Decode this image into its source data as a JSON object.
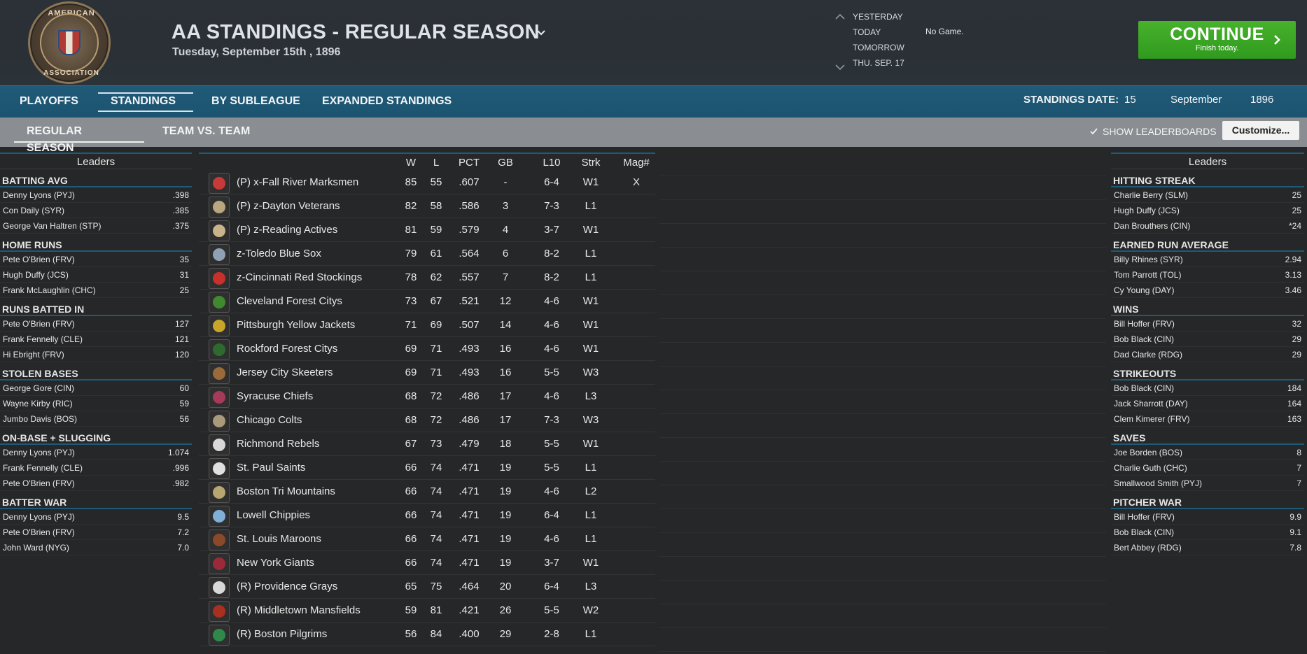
{
  "header": {
    "title": "AA STANDINGS - REGULAR SEASON",
    "date": "Tuesday, September 15th , 1896",
    "logo_text_top": "AMERICAN",
    "logo_text_bottom": "ASSOCIATION",
    "days": [
      "YESTERDAY",
      "TODAY",
      "TOMORROW",
      "THU. SEP. 17"
    ],
    "today_status": "No Game.",
    "continue_label": "CONTINUE",
    "continue_sub": "Finish today."
  },
  "tabs_primary": [
    "PLAYOFFS",
    "STANDINGS",
    "BY SUBLEAGUE",
    "EXPANDED STANDINGS"
  ],
  "standings_date": {
    "label": "STANDINGS DATE:",
    "day": "15",
    "month": "September",
    "year": "1896"
  },
  "tabs_secondary": [
    "REGULAR SEASON",
    "TEAM VS. TEAM"
  ],
  "show_leaderboards": "SHOW LEADERBOARDS",
  "customize": "Customize...",
  "colors": {
    "accent": "#1f5a78",
    "continue": "#3fa827"
  },
  "left_leaders": {
    "title": "Leaders",
    "categories": [
      {
        "name": "BATTING AVG",
        "rows": [
          [
            "Denny Lyons (PYJ)",
            ".398"
          ],
          [
            "Con Daily (SYR)",
            ".385"
          ],
          [
            "George Van Haltren (STP)",
            ".375"
          ]
        ]
      },
      {
        "name": "HOME RUNS",
        "rows": [
          [
            "Pete O'Brien (FRV)",
            "35"
          ],
          [
            "Hugh Duffy (JCS)",
            "31"
          ],
          [
            "Frank McLaughlin (CHC)",
            "25"
          ]
        ]
      },
      {
        "name": "RUNS BATTED IN",
        "rows": [
          [
            "Pete O'Brien (FRV)",
            "127"
          ],
          [
            "Frank Fennelly (CLE)",
            "121"
          ],
          [
            "Hi Ebright (FRV)",
            "120"
          ]
        ]
      },
      {
        "name": "STOLEN BASES",
        "rows": [
          [
            "George Gore (CIN)",
            "60"
          ],
          [
            "Wayne Kirby (RIC)",
            "59"
          ],
          [
            "Jumbo Davis (BOS)",
            "56"
          ]
        ]
      },
      {
        "name": "ON-BASE + SLUGGING",
        "rows": [
          [
            "Denny Lyons (PYJ)",
            "1.074"
          ],
          [
            "Frank Fennelly (CLE)",
            ".996"
          ],
          [
            "Pete O'Brien (FRV)",
            ".982"
          ]
        ]
      },
      {
        "name": "BATTER WAR",
        "rows": [
          [
            "Denny Lyons (PYJ)",
            "9.5"
          ],
          [
            "Pete O'Brien (FRV)",
            "7.2"
          ],
          [
            "John Ward (NYG)",
            "7.0"
          ]
        ]
      }
    ]
  },
  "right_leaders": {
    "title": "Leaders",
    "categories": [
      {
        "name": "HITTING STREAK",
        "rows": [
          [
            "Charlie Berry (SLM)",
            "25"
          ],
          [
            "Hugh Duffy (JCS)",
            "25"
          ],
          [
            "Dan Brouthers (CIN)",
            "*24"
          ]
        ]
      },
      {
        "name": "EARNED RUN AVERAGE",
        "rows": [
          [
            "Billy Rhines (SYR)",
            "2.94"
          ],
          [
            "Tom Parrott (TOL)",
            "3.13"
          ],
          [
            "Cy Young (DAY)",
            "3.46"
          ]
        ]
      },
      {
        "name": "WINS",
        "rows": [
          [
            "Bill Hoffer (FRV)",
            "32"
          ],
          [
            "Bob Black (CIN)",
            "29"
          ],
          [
            "Dad Clarke (RDG)",
            "29"
          ]
        ]
      },
      {
        "name": "STRIKEOUTS",
        "rows": [
          [
            "Bob Black (CIN)",
            "184"
          ],
          [
            "Jack Sharrott (DAY)",
            "164"
          ],
          [
            "Clem Kimerer (FRV)",
            "163"
          ]
        ]
      },
      {
        "name": "SAVES",
        "rows": [
          [
            "Joe Borden (BOS)",
            "8"
          ],
          [
            "Charlie Guth (CHC)",
            "7"
          ],
          [
            "Smallwood Smith (PYJ)",
            "7"
          ]
        ]
      },
      {
        "name": "PITCHER WAR",
        "rows": [
          [
            "Bill Hoffer (FRV)",
            "9.9"
          ],
          [
            "Bob Black (CIN)",
            "9.1"
          ],
          [
            "Bert Abbey (RDG)",
            "7.8"
          ]
        ]
      }
    ]
  },
  "standings": {
    "columns": [
      "W",
      "L",
      "PCT",
      "GB",
      "L10",
      "Strk",
      "Mag#"
    ],
    "rows": [
      {
        "team": "(P) x-Fall River Marksmen",
        "w": "85",
        "l": "55",
        "pct": ".607",
        "gb": "-",
        "l10": "6-4",
        "strk": "W1",
        "mag": "X",
        "logo": "#c83a3a"
      },
      {
        "team": "(P) z-Dayton Veterans",
        "w": "82",
        "l": "58",
        "pct": ".586",
        "gb": "3",
        "l10": "7-3",
        "strk": "L1",
        "mag": "",
        "logo": "#b9a57e"
      },
      {
        "team": "(P) z-Reading Actives",
        "w": "81",
        "l": "59",
        "pct": ".579",
        "gb": "4",
        "l10": "3-7",
        "strk": "W1",
        "mag": "",
        "logo": "#c9b48a"
      },
      {
        "team": "z-Toledo Blue Sox",
        "w": "79",
        "l": "61",
        "pct": ".564",
        "gb": "6",
        "l10": "8-2",
        "strk": "L1",
        "mag": "",
        "logo": "#8fa1b4"
      },
      {
        "team": "z-Cincinnati Red Stockings",
        "w": "78",
        "l": "62",
        "pct": ".557",
        "gb": "7",
        "l10": "8-2",
        "strk": "L1",
        "mag": "",
        "logo": "#c8302c"
      },
      {
        "team": "Cleveland Forest Citys",
        "w": "73",
        "l": "67",
        "pct": ".521",
        "gb": "12",
        "l10": "4-6",
        "strk": "W1",
        "mag": "",
        "logo": "#3f8a2e"
      },
      {
        "team": "Pittsburgh Yellow Jackets",
        "w": "71",
        "l": "69",
        "pct": ".507",
        "gb": "14",
        "l10": "4-6",
        "strk": "W1",
        "mag": "",
        "logo": "#c9a52a"
      },
      {
        "team": "Rockford Forest Citys",
        "w": "69",
        "l": "71",
        "pct": ".493",
        "gb": "16",
        "l10": "4-6",
        "strk": "W1",
        "mag": "",
        "logo": "#2e6a2e"
      },
      {
        "team": "Jersey City Skeeters",
        "w": "69",
        "l": "71",
        "pct": ".493",
        "gb": "16",
        "l10": "5-5",
        "strk": "W3",
        "mag": "",
        "logo": "#9a6a3a"
      },
      {
        "team": "Syracuse Chiefs",
        "w": "68",
        "l": "72",
        "pct": ".486",
        "gb": "17",
        "l10": "4-6",
        "strk": "L3",
        "mag": "",
        "logo": "#a53a5a"
      },
      {
        "team": "Chicago Colts",
        "w": "68",
        "l": "72",
        "pct": ".486",
        "gb": "17",
        "l10": "7-3",
        "strk": "W3",
        "mag": "",
        "logo": "#a89a7a"
      },
      {
        "team": "Richmond Rebels",
        "w": "67",
        "l": "73",
        "pct": ".479",
        "gb": "18",
        "l10": "5-5",
        "strk": "W1",
        "mag": "",
        "logo": "#d8d8d8"
      },
      {
        "team": "St. Paul Saints",
        "w": "66",
        "l": "74",
        "pct": ".471",
        "gb": "19",
        "l10": "5-5",
        "strk": "L1",
        "mag": "",
        "logo": "#e0e0e0"
      },
      {
        "team": "Boston Tri Mountains",
        "w": "66",
        "l": "74",
        "pct": ".471",
        "gb": "19",
        "l10": "4-6",
        "strk": "L2",
        "mag": "",
        "logo": "#b7a670"
      },
      {
        "team": "Lowell Chippies",
        "w": "66",
        "l": "74",
        "pct": ".471",
        "gb": "19",
        "l10": "6-4",
        "strk": "L1",
        "mag": "",
        "logo": "#7fb0d8"
      },
      {
        "team": "St. Louis Maroons",
        "w": "66",
        "l": "74",
        "pct": ".471",
        "gb": "19",
        "l10": "4-6",
        "strk": "L1",
        "mag": "",
        "logo": "#8a4a2a"
      },
      {
        "team": "New York Giants",
        "w": "66",
        "l": "74",
        "pct": ".471",
        "gb": "19",
        "l10": "3-7",
        "strk": "W1",
        "mag": "",
        "logo": "#9a2a3a"
      },
      {
        "team": "(R) Providence Grays",
        "w": "65",
        "l": "75",
        "pct": ".464",
        "gb": "20",
        "l10": "6-4",
        "strk": "L3",
        "mag": "",
        "logo": "#d8d8d8"
      },
      {
        "team": "(R) Middletown Mansfields",
        "w": "59",
        "l": "81",
        "pct": ".421",
        "gb": "26",
        "l10": "5-5",
        "strk": "W2",
        "mag": "",
        "logo": "#a83020"
      },
      {
        "team": "(R) Boston Pilgrims",
        "w": "56",
        "l": "84",
        "pct": ".400",
        "gb": "29",
        "l10": "2-8",
        "strk": "L1",
        "mag": "",
        "logo": "#2e8a4a"
      }
    ]
  }
}
